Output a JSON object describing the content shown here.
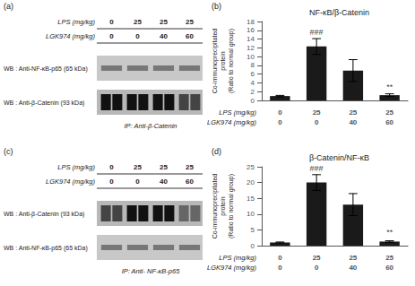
{
  "chart_data": [
    {
      "type": "blot",
      "label": "(a)",
      "xlabel": "LPS (mg/kg)\nLGK974 (mg/kg)",
      "categories": [
        "0\n0",
        "25\n0",
        "25\n40",
        "25\n60"
      ],
      "rows": [
        {
          "label": "WB : Anti-NF-κB-p65 (65 kDa)",
          "color": "#c8c8c8",
          "colors": [
            "#777777",
            "#777777",
            "#777777",
            "#777777"
          ]
        },
        {
          "label": "WB : Anti-β-Catenin (93 kDa)",
          "color": "#b8b8b8",
          "colors": [
            "#111111",
            "#111111",
            "#111111",
            "#111111",
            "#111111",
            "#111111",
            "#444444",
            "#444444"
          ]
        }
      ],
      "ip_label": "IP: Anti-β-Catenin"
    },
    {
      "type": "bar",
      "label": "(b)",
      "title": "NF-κB/β-Catenin",
      "ylabel": "Co-immunoprecipitated\nprotein\n(Ratio to normal group)",
      "xlabel": "LPS (mg/kg)\nLGK974 (mg/kg)",
      "categories": [
        "0\n0",
        "25\n0",
        "25\n40",
        "25\n60"
      ],
      "values": [
        1.0,
        12.3,
        6.8,
        1.2
      ],
      "errors": [
        0.15,
        1.8,
        2.5,
        0.3
      ],
      "color": "#1a1a1a",
      "ylim": [
        0,
        18
      ],
      "yticks": [
        0,
        2,
        4,
        6,
        8,
        10,
        12,
        14,
        16,
        18
      ],
      "grid": false,
      "annotations": [
        {
          "x": "25\n0",
          "y": 14.5,
          "text": "###"
        },
        {
          "x": "25\n60",
          "y": 2.0,
          "text": "**"
        }
      ]
    },
    {
      "type": "blot",
      "label": "(c)",
      "xlabel": "LPS (mg/kg)\nLGK974 (mg/kg)",
      "categories": [
        "0\n0",
        "25\n0",
        "25\n40",
        "25\n60"
      ],
      "rows": [
        {
          "label": "WB : Anti-β-Catenin (93 kDa)",
          "color": "#b8b8b8",
          "colors": [
            "#444444",
            "#444444",
            "#111111",
            "#111111",
            "#111111",
            "#111111",
            "#666666",
            "#666666"
          ]
        },
        {
          "label": "WB : Anti-NF-κB-p65 (65 kDa)",
          "color": "#c8c8c8",
          "colors": [
            "#777777",
            "#777777",
            "#777777",
            "#777777"
          ]
        }
      ],
      "ip_label": "IP: Anti- NF-κB-p65"
    },
    {
      "type": "bar",
      "label": "(d)",
      "title": "β-Catenin/NF-κB",
      "ylabel": "Co-immunoprecipitated\nprotein\n(Ratio to normal group)",
      "xlabel": "LPS (mg/kg)\nLGK974 (mg/kg)",
      "categories": [
        "0\n0",
        "25\n0",
        "25\n40",
        "25\n60"
      ],
      "values": [
        1.0,
        20.0,
        13.0,
        1.3
      ],
      "errors": [
        0.15,
        2.5,
        3.5,
        0.25
      ],
      "color": "#1a1a1a",
      "ylim": [
        0,
        25
      ],
      "yticks": [
        0,
        5,
        10,
        15,
        20,
        25
      ],
      "grid": false,
      "annotations": [
        {
          "x": "25\n0",
          "y": 23.0,
          "text": "###"
        },
        {
          "x": "25\n60",
          "y": 2.8,
          "text": "**"
        }
      ]
    }
  ]
}
